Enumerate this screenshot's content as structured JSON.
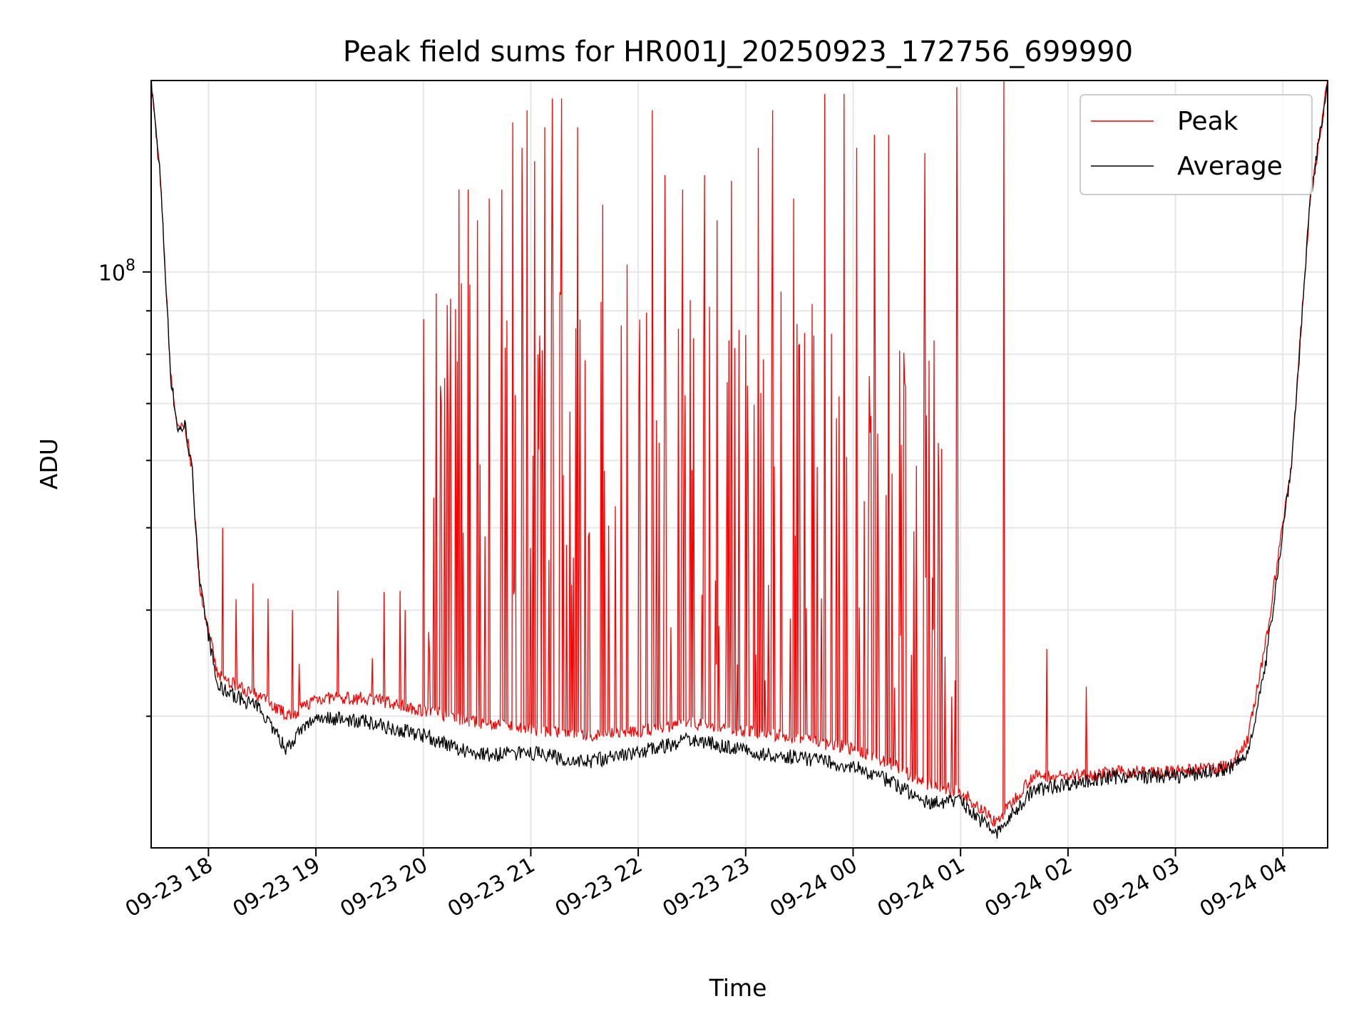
{
  "chart_data": {
    "type": "line",
    "title": "Peak field sums for HR001J_20250923_172756_699990",
    "xlabel": "Time",
    "ylabel": "ADU",
    "yscale": "log",
    "xlim": [
      "2025-09-23 17:28",
      "2025-09-24 04:25"
    ],
    "ylim": [
      21000000,
      168000000
    ],
    "grid": true,
    "legend_position": "top-right",
    "x_ticks": [
      {
        "time": "2025-09-23 18:00",
        "label": "09-23 18"
      },
      {
        "time": "2025-09-23 19:00",
        "label": "09-23 19"
      },
      {
        "time": "2025-09-23 20:00",
        "label": "09-23 20"
      },
      {
        "time": "2025-09-23 21:00",
        "label": "09-23 21"
      },
      {
        "time": "2025-09-23 22:00",
        "label": "09-23 22"
      },
      {
        "time": "2025-09-23 23:00",
        "label": "09-23 23"
      },
      {
        "time": "2025-09-24 00:00",
        "label": "09-24 00"
      },
      {
        "time": "2025-09-24 01:00",
        "label": "09-24 01"
      },
      {
        "time": "2025-09-24 02:00",
        "label": "09-24 02"
      },
      {
        "time": "2025-09-24 03:00",
        "label": "09-24 03"
      },
      {
        "time": "2025-09-24 04:00",
        "label": "09-24 04"
      }
    ],
    "y_ticks": [
      {
        "value": 100000000,
        "label": "10",
        "exponent": "8"
      }
    ],
    "series": [
      {
        "name": "Peak",
        "color": "#ff0000",
        "baseline_points": [
          [
            "2025-09-23 17:28",
            168000000
          ],
          [
            "2025-09-23 17:33",
            130000000
          ],
          [
            "2025-09-23 17:39",
            75000000
          ],
          [
            "2025-09-23 17:43",
            65000000
          ],
          [
            "2025-09-23 17:47",
            66000000
          ],
          [
            "2025-09-23 17:51",
            58000000
          ],
          [
            "2025-09-23 17:55",
            43000000
          ],
          [
            "2025-09-23 18:05",
            33500000
          ],
          [
            "2025-09-23 18:30",
            31500000
          ],
          [
            "2025-09-23 18:45",
            30000000
          ],
          [
            "2025-09-23 19:00",
            31500000
          ],
          [
            "2025-09-23 19:30",
            31500000
          ],
          [
            "2025-09-23 20:00",
            30500000
          ],
          [
            "2025-09-23 20:30",
            29500000
          ],
          [
            "2025-09-23 21:00",
            29000000
          ],
          [
            "2025-09-23 21:30",
            28500000
          ],
          [
            "2025-09-23 22:00",
            28800000
          ],
          [
            "2025-09-23 22:30",
            29500000
          ],
          [
            "2025-09-23 23:00",
            28800000
          ],
          [
            "2025-09-23 23:30",
            28200000
          ],
          [
            "2025-09-24 00:00",
            27500000
          ],
          [
            "2025-09-24 00:20",
            26500000
          ],
          [
            "2025-09-24 00:40",
            25000000
          ],
          [
            "2025-09-24 01:00",
            24500000
          ],
          [
            "2025-09-24 01:20",
            22500000
          ],
          [
            "2025-09-24 01:40",
            25500000
          ],
          [
            "2025-09-24 02:00",
            25500000
          ],
          [
            "2025-09-24 02:30",
            25800000
          ],
          [
            "2025-09-24 03:00",
            25800000
          ],
          [
            "2025-09-24 03:30",
            26200000
          ],
          [
            "2025-09-24 03:40",
            28000000
          ],
          [
            "2025-09-24 03:50",
            36000000
          ],
          [
            "2025-09-24 04:05",
            60000000
          ],
          [
            "2025-09-24 04:15",
            120000000
          ],
          [
            "2025-09-24 04:25",
            168000000
          ]
        ],
        "spikes": [
          [
            "2025-09-23 18:08",
            50000000
          ],
          [
            "2025-09-23 18:25",
            43000000
          ],
          [
            "2025-09-23 18:47",
            40000000
          ],
          [
            "2025-09-23 19:38",
            42000000
          ],
          [
            "2025-09-23 19:50",
            40000000
          ],
          [
            "2025-09-23 20:00",
            88000000
          ],
          [
            "2025-09-23 20:10",
            70000000
          ],
          [
            "2025-09-23 20:15",
            93000000
          ],
          [
            "2025-09-23 20:20",
            125000000
          ],
          [
            "2025-09-23 20:25",
            125000000
          ],
          [
            "2025-09-23 20:30",
            115000000
          ],
          [
            "2025-09-23 20:37",
            122000000
          ],
          [
            "2025-09-23 20:44",
            125000000
          ],
          [
            "2025-09-23 20:50",
            150000000
          ],
          [
            "2025-09-23 20:55",
            140000000
          ],
          [
            "2025-09-23 20:58",
            155000000
          ],
          [
            "2025-09-23 21:02",
            135000000
          ],
          [
            "2025-09-23 21:08",
            148000000
          ],
          [
            "2025-09-23 21:12",
            160000000
          ],
          [
            "2025-09-23 21:17",
            160000000
          ],
          [
            "2025-09-23 21:26",
            148000000
          ],
          [
            "2025-09-23 21:40",
            120000000
          ],
          [
            "2025-09-23 21:54",
            102000000
          ],
          [
            "2025-09-23 22:08",
            155000000
          ],
          [
            "2025-09-23 22:15",
            130000000
          ],
          [
            "2025-09-23 22:25",
            125000000
          ],
          [
            "2025-09-23 22:37",
            130000000
          ],
          [
            "2025-09-23 22:44",
            115000000
          ],
          [
            "2025-09-23 22:52",
            128000000
          ],
          [
            "2025-09-23 23:07",
            140000000
          ],
          [
            "2025-09-23 23:15",
            155000000
          ],
          [
            "2025-09-23 23:27",
            122000000
          ],
          [
            "2025-09-23 23:44",
            162000000
          ],
          [
            "2025-09-23 23:55",
            162000000
          ],
          [
            "2025-09-24 00:02",
            140000000
          ],
          [
            "2025-09-24 00:12",
            145000000
          ],
          [
            "2025-09-24 00:20",
            145000000
          ],
          [
            "2025-09-24 00:40",
            138000000
          ],
          [
            "2025-09-24 00:58",
            165000000
          ],
          [
            "2025-09-24 01:24",
            168000000
          ],
          [
            "2025-09-24 01:48",
            36000000
          ],
          [
            "2025-09-24 02:10",
            32500000
          ]
        ]
      },
      {
        "name": "Average",
        "color": "#000000",
        "baseline_points": [
          [
            "2025-09-23 17:28",
            168000000
          ],
          [
            "2025-09-23 17:33",
            130000000
          ],
          [
            "2025-09-23 17:39",
            75000000
          ],
          [
            "2025-09-23 17:43",
            65000000
          ],
          [
            "2025-09-23 17:47",
            66000000
          ],
          [
            "2025-09-23 17:51",
            58000000
          ],
          [
            "2025-09-23 17:55",
            43000000
          ],
          [
            "2025-09-23 18:05",
            32500000
          ],
          [
            "2025-09-23 18:30",
            30500000
          ],
          [
            "2025-09-23 18:43",
            27500000
          ],
          [
            "2025-09-23 19:00",
            30000000
          ],
          [
            "2025-09-23 19:30",
            29500000
          ],
          [
            "2025-09-23 20:00",
            28500000
          ],
          [
            "2025-09-23 20:30",
            27000000
          ],
          [
            "2025-09-23 21:00",
            27200000
          ],
          [
            "2025-09-23 21:30",
            26500000
          ],
          [
            "2025-09-23 22:00",
            27200000
          ],
          [
            "2025-09-23 22:30",
            28200000
          ],
          [
            "2025-09-23 23:00",
            27300000
          ],
          [
            "2025-09-23 23:30",
            26800000
          ],
          [
            "2025-09-24 00:00",
            26200000
          ],
          [
            "2025-09-24 00:20",
            25200000
          ],
          [
            "2025-09-24 00:40",
            23800000
          ],
          [
            "2025-09-24 01:00",
            23800000
          ],
          [
            "2025-09-24 01:20",
            21800000
          ],
          [
            "2025-09-24 01:40",
            24500000
          ],
          [
            "2025-09-24 02:00",
            25000000
          ],
          [
            "2025-09-24 02:30",
            25500000
          ],
          [
            "2025-09-24 03:00",
            25500000
          ],
          [
            "2025-09-24 03:30",
            26000000
          ],
          [
            "2025-09-24 03:40",
            27000000
          ],
          [
            "2025-09-24 03:50",
            34000000
          ],
          [
            "2025-09-24 04:05",
            60000000
          ],
          [
            "2025-09-24 04:15",
            120000000
          ],
          [
            "2025-09-24 04:25",
            168000000
          ]
        ]
      }
    ]
  }
}
